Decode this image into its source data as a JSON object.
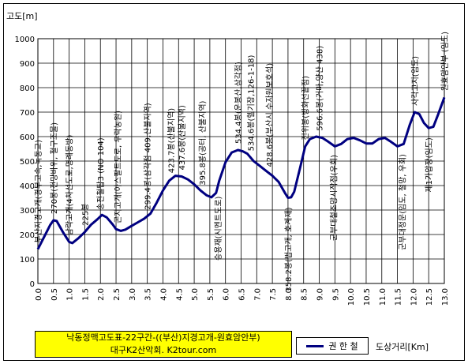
{
  "chart_data": {
    "type": "line",
    "ylabel": "고도[m]",
    "xlabel": "도상거리[Km]",
    "xlim": [
      0,
      13
    ],
    "ylim": [
      0,
      1000
    ],
    "xticks": [
      "0.0",
      "0.5",
      "1.0",
      "1.5",
      "2.0",
      "2.5",
      "3.0",
      "3.5",
      "4.0",
      "4.5",
      "5.0",
      "5.5",
      "6.0",
      "6.5",
      "7.0",
      "7.5",
      "8.0",
      "8.5",
      "9.0",
      "9.5",
      "10.0",
      "10.5",
      "11.0",
      "11.5",
      "12.0",
      "12.5",
      "13.0"
    ],
    "yticks": [
      "0",
      "100",
      "200",
      "300",
      "400",
      "500",
      "600",
      "700",
      "800",
      "900",
      "1000"
    ],
    "grid": true,
    "legend_position": "bottom",
    "series": [
      {
        "name": "권 한 철",
        "color": "#000080",
        "points": [
          [
            0.0,
            140
          ],
          [
            0.2,
            190
          ],
          [
            0.4,
            240
          ],
          [
            0.5,
            258
          ],
          [
            0.6,
            255
          ],
          [
            0.8,
            210
          ],
          [
            1.0,
            170
          ],
          [
            1.1,
            165
          ],
          [
            1.3,
            185
          ],
          [
            1.5,
            210
          ],
          [
            1.7,
            240
          ],
          [
            1.9,
            262
          ],
          [
            2.05,
            280
          ],
          [
            2.2,
            270
          ],
          [
            2.4,
            240
          ],
          [
            2.5,
            222
          ],
          [
            2.65,
            215
          ],
          [
            2.8,
            220
          ],
          [
            3.0,
            235
          ],
          [
            3.2,
            250
          ],
          [
            3.4,
            265
          ],
          [
            3.6,
            285
          ],
          [
            3.8,
            330
          ],
          [
            4.0,
            380
          ],
          [
            4.2,
            420
          ],
          [
            4.4,
            440
          ],
          [
            4.6,
            437
          ],
          [
            4.8,
            425
          ],
          [
            5.0,
            405
          ],
          [
            5.2,
            380
          ],
          [
            5.4,
            360
          ],
          [
            5.55,
            352
          ],
          [
            5.7,
            370
          ],
          [
            5.8,
            420
          ],
          [
            6.0,
            495
          ],
          [
            6.2,
            535
          ],
          [
            6.4,
            545
          ],
          [
            6.55,
            540
          ],
          [
            6.7,
            530
          ],
          [
            6.9,
            500
          ],
          [
            7.1,
            480
          ],
          [
            7.3,
            460
          ],
          [
            7.5,
            440
          ],
          [
            7.7,
            415
          ],
          [
            7.9,
            370
          ],
          [
            8.0,
            350
          ],
          [
            8.1,
            352
          ],
          [
            8.2,
            375
          ],
          [
            8.4,
            480
          ],
          [
            8.55,
            560
          ],
          [
            8.7,
            590
          ],
          [
            8.9,
            600
          ],
          [
            9.1,
            595
          ],
          [
            9.3,
            578
          ],
          [
            9.5,
            560
          ],
          [
            9.7,
            570
          ],
          [
            9.9,
            590
          ],
          [
            10.1,
            595
          ],
          [
            10.3,
            585
          ],
          [
            10.5,
            572
          ],
          [
            10.7,
            572
          ],
          [
            10.9,
            590
          ],
          [
            11.1,
            595
          ],
          [
            11.3,
            578
          ],
          [
            11.5,
            560
          ],
          [
            11.7,
            570
          ],
          [
            11.9,
            650
          ],
          [
            12.05,
            700
          ],
          [
            12.2,
            692
          ],
          [
            12.35,
            655
          ],
          [
            12.5,
            635
          ],
          [
            12.65,
            640
          ],
          [
            12.8,
            690
          ],
          [
            13.0,
            760
          ]
        ]
      }
    ],
    "annotations": [
      {
        "x": 0.0,
        "text": "부산지경고개(경부고속,녹동교)"
      },
      {
        "x": 0.5,
        "text": "270봉(전망바위, 철구조물)"
      },
      {
        "x": 1.0,
        "text": "남락고개(4차선도로,명례동방)"
      },
      {
        "x": 1.5,
        "text": "225봉"
      },
      {
        "x": 2.0,
        "text": "송전철탑3 (NO 104)"
      },
      {
        "x": 2.55,
        "text": "곤지고개(아스팔트도로, 우락농원)"
      },
      {
        "x": 3.5,
        "text": "299.4봉(삼각점 409,산불지역)"
      },
      {
        "x": 4.25,
        "text": "423.7봉(산불지역)"
      },
      {
        "x": 4.6,
        "text": "437.6봉(산불지역)"
      },
      {
        "x": 5.25,
        "text": "395.8봉(공터, 산불지역)"
      },
      {
        "x": 5.75,
        "text": "승용재(시멘트도로)"
      },
      {
        "x": 6.4,
        "text": "534.4봉(운봉산,삼각점)"
      },
      {
        "x": 6.8,
        "text": "534.6봉(헬기장,126-1-18)"
      },
      {
        "x": 7.4,
        "text": "428.6봉(부산시 수자원보호석)"
      },
      {
        "x": 8.0,
        "text": "358.2봉(법고개, 호계재)"
      },
      {
        "x": 8.55,
        "text": "전위봉(방화선끝점)"
      },
      {
        "x": 9.0,
        "text": "596.6봉(거마,양산 438)"
      },
      {
        "x": 9.45,
        "text": "군부대철조망시작점(우회)"
      },
      {
        "x": 11.65,
        "text": "군부대정문(임도, 철망, 우회)"
      },
      {
        "x": 12.05,
        "text": "사각고지(임도)"
      },
      {
        "x": 12.5,
        "text": "제1가압장(임도)"
      },
      {
        "x": 13.0,
        "text": "원효암안부 (임도)"
      }
    ]
  },
  "footer": {
    "title_line1": "낙동정맥고도표-22구간-((부산)지경고개-원효암안부)",
    "title_line2": "대구K2산악회. K2tour.com",
    "legend_label": "권 한 철"
  }
}
